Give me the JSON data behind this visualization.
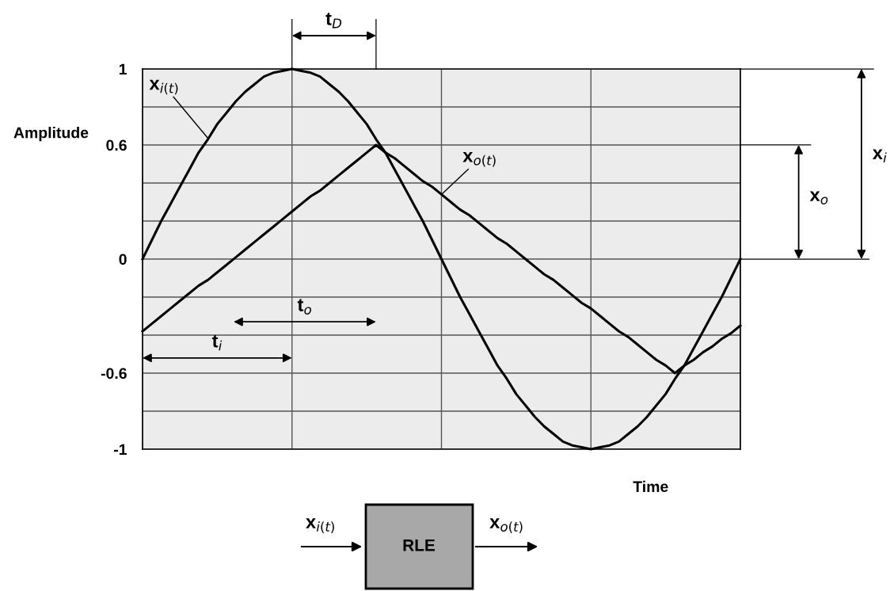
{
  "chart_data": {
    "type": "line",
    "xlabel": "Time",
    "ylabel": "Amplitude",
    "categories": [
      null,
      null,
      null,
      null,
      null,
      null,
      null,
      null,
      null,
      null,
      null,
      null,
      null,
      null,
      null,
      null,
      null,
      null,
      null,
      null,
      null,
      null,
      null,
      null,
      null,
      null,
      null,
      null,
      null,
      null,
      null,
      null,
      null,
      null,
      null,
      null,
      null,
      null,
      null,
      null,
      null,
      null,
      null,
      null,
      null,
      null,
      null,
      null,
      null,
      null,
      null,
      null,
      null,
      null,
      null,
      null,
      null,
      null,
      null,
      null,
      null,
      null,
      null,
      null,
      null
    ],
    "ylim": [
      -1,
      1
    ],
    "yticks": [
      -1,
      {
        "value": -0.8,
        "label": null
      },
      -0.6,
      {
        "value": -0.4,
        "label": null
      },
      {
        "value": -0.2,
        "label": null
      },
      0,
      {
        "value": 0.2,
        "label": null
      },
      {
        "value": 0.4,
        "label": null
      },
      0.6,
      {
        "value": 0.8,
        "label": null
      },
      1
    ],
    "grid": true,
    "legend": false,
    "series": [
      {
        "name": "x$_{i(t)}$",
        "color": "#000000",
        "values": [
          0,
          0.1,
          0.2,
          0.29,
          0.38,
          0.47,
          0.56,
          0.63,
          0.71,
          0.77,
          0.83,
          0.88,
          0.92,
          0.96,
          0.98,
          0.99,
          1,
          0.99,
          0.98,
          0.96,
          0.92,
          0.88,
          0.83,
          0.77,
          0.71,
          0.63,
          0.56,
          0.47,
          0.38,
          0.29,
          0.2,
          0.1,
          0,
          -0.1,
          -0.2,
          -0.29,
          -0.38,
          -0.47,
          -0.56,
          -0.63,
          -0.71,
          -0.77,
          -0.83,
          -0.88,
          -0.92,
          -0.96,
          -0.98,
          -0.99,
          -1,
          -0.99,
          -0.98,
          -0.96,
          -0.92,
          -0.88,
          -0.83,
          -0.77,
          -0.71,
          -0.63,
          -0.56,
          -0.47,
          -0.38,
          -0.29,
          -0.2,
          -0.1,
          0
        ]
      },
      {
        "name": "x$_{o(t)}$",
        "color": "#000000",
        "values": [
          -0.38,
          -0.34,
          -0.3,
          -0.26,
          -0.22,
          -0.18,
          -0.14,
          -0.11,
          -0.07,
          -0.03,
          0.01,
          0.05,
          0.09,
          0.13,
          0.17,
          0.21,
          0.25,
          0.29,
          0.33,
          0.36,
          0.4,
          0.44,
          0.48,
          0.52,
          0.56,
          0.6,
          0.56,
          0.53,
          0.49,
          0.45,
          0.41,
          0.38,
          0.34,
          0.3,
          0.26,
          0.23,
          0.19,
          0.15,
          0.11,
          0.08,
          0.04,
          0,
          -0.04,
          -0.08,
          -0.11,
          -0.15,
          -0.19,
          -0.23,
          -0.26,
          -0.3,
          -0.34,
          -0.38,
          -0.41,
          -0.45,
          -0.49,
          -0.53,
          -0.56,
          -0.6,
          -0.56,
          -0.53,
          -0.49,
          -0.46,
          -0.42,
          -0.39,
          -0.35
        ]
      }
    ],
    "annotations": [
      "t$_{D}$",
      "t$_{o}$",
      "t$_{i}$",
      "x$_{i}$",
      "x$_{o}$",
      "x$_{i(t)}$",
      "RLE",
      "x$_{o(t)}$"
    ]
  }
}
